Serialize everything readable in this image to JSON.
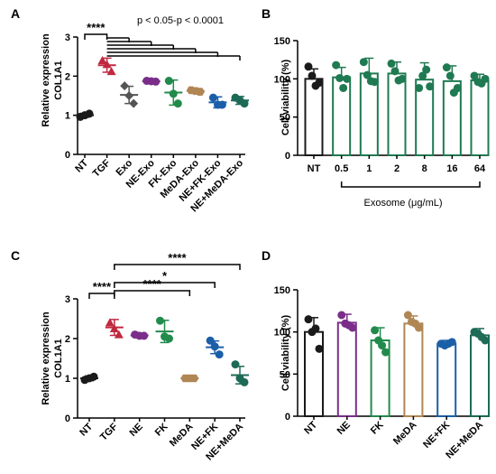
{
  "chart_data": [
    {
      "id": "A",
      "type": "scatter",
      "panel_label": "A",
      "ylabel": [
        "Relative expression",
        "COL1A1"
      ],
      "ylim": [
        0,
        3
      ],
      "yticks": [
        0,
        1,
        2,
        3
      ],
      "categories": [
        "NT",
        "TGF",
        "Exo",
        "NE-Exo",
        "FK-Exo",
        "MeDA-Exo",
        "NE+FK-Exo",
        "NE+MeDA-Exo"
      ],
      "colors": [
        "#1a1a1a",
        "#c0283f",
        "#555555",
        "#7a2e8a",
        "#228b4c",
        "#b08654",
        "#1b5fa8",
        "#1d6b56"
      ],
      "markers": [
        "circle",
        "triangle",
        "diamond",
        "circle",
        "circle",
        "hexagon",
        "circle",
        "circle"
      ],
      "means": [
        1.0,
        2.28,
        1.52,
        1.87,
        1.58,
        1.62,
        1.33,
        1.38
      ],
      "sd": [
        0.05,
        0.18,
        0.22,
        0.04,
        0.32,
        0.05,
        0.14,
        0.1
      ],
      "points": [
        [
          0.96,
          1.0,
          1.04
        ],
        [
          2.4,
          2.3,
          2.12
        ],
        [
          1.75,
          1.5,
          1.3
        ],
        [
          1.88,
          1.87,
          1.86
        ],
        [
          1.88,
          1.55,
          1.3
        ],
        [
          1.64,
          1.62,
          1.6
        ],
        [
          1.45,
          1.27,
          1.27
        ],
        [
          1.45,
          1.38,
          1.3
        ]
      ],
      "annotation": "p < 0.05-p < 0.0001",
      "significance": [
        {
          "from": 0,
          "to": 1,
          "label": "****"
        }
      ]
    },
    {
      "id": "B",
      "type": "bar",
      "panel_label": "B",
      "ylabel": [
        "Cell viability (%)"
      ],
      "ylim": [
        0,
        150
      ],
      "yticks": [
        0,
        50,
        100,
        150
      ],
      "categories": [
        "NT",
        "0.5",
        "1",
        "2",
        "8",
        "16",
        "64"
      ],
      "colors": [
        "#1a1a1a",
        "#1f7a52",
        "#1f7a52",
        "#1f7a52",
        "#1f7a52",
        "#1f7a52",
        "#1f7a52"
      ],
      "values": [
        100,
        102,
        107,
        107,
        99,
        97,
        98
      ],
      "sd": [
        13,
        13,
        20,
        15,
        22,
        20,
        8
      ],
      "points": [
        [
          116,
          104,
          91,
          95
        ],
        [
          118,
          101,
          88,
          100
        ],
        [
          122,
          105,
          97,
          96
        ],
        [
          120,
          110,
          98,
          100
        ],
        [
          88,
          104,
          112,
          90
        ],
        [
          115,
          104,
          82,
          88
        ],
        [
          104,
          96,
          94,
          100
        ]
      ],
      "bracket_label": "Exosome (μg/mL)"
    },
    {
      "id": "C",
      "type": "scatter",
      "panel_label": "C",
      "ylabel": [
        "Relative expression",
        "COL1A1"
      ],
      "ylim": [
        0,
        3
      ],
      "yticks": [
        0,
        1,
        2,
        3
      ],
      "categories": [
        "NT",
        "TGF",
        "NE",
        "FK",
        "MeDA",
        "NE+FK",
        "NE+MeDA"
      ],
      "colors": [
        "#1a1a1a",
        "#c0283f",
        "#7a2e8a",
        "#228b4c",
        "#b08654",
        "#1b5fa8",
        "#1d6b56"
      ],
      "markers": [
        "circle",
        "triangle",
        "circle",
        "circle",
        "hexagon",
        "circle",
        "circle"
      ],
      "means": [
        1.0,
        2.28,
        2.08,
        2.18,
        1.0,
        1.78,
        1.08
      ],
      "sd": [
        0.06,
        0.2,
        0.04,
        0.28,
        0.03,
        0.16,
        0.22
      ],
      "points": [
        [
          0.96,
          1.0,
          1.04
        ],
        [
          2.4,
          2.25,
          2.1
        ],
        [
          2.1,
          2.07,
          2.07
        ],
        [
          2.45,
          2.05,
          2.0
        ],
        [
          1.0,
          1.0,
          1.0
        ],
        [
          1.95,
          1.8,
          1.6
        ],
        [
          1.35,
          1.0,
          0.9
        ]
      ],
      "significance": [
        {
          "from": 0,
          "to": 1,
          "label": "****"
        },
        {
          "from": 1,
          "to": 4,
          "label": "****"
        },
        {
          "from": 1,
          "to": 5,
          "label": "*"
        },
        {
          "from": 1,
          "to": 6,
          "label": "****"
        }
      ]
    },
    {
      "id": "D",
      "type": "bar",
      "panel_label": "D",
      "ylabel": [
        "Cell viability (%)"
      ],
      "ylim": [
        0,
        150
      ],
      "yticks": [
        0,
        50,
        100,
        150
      ],
      "categories": [
        "NT",
        "NE",
        "FK",
        "MeDA",
        "NE+FK",
        "NE+MeDA"
      ],
      "colors": [
        "#1a1a1a",
        "#7a2e8a",
        "#228b4c",
        "#b08654",
        "#1b5fa8",
        "#1d6b56"
      ],
      "values": [
        100,
        111,
        90,
        110,
        86,
        96
      ],
      "sd": [
        17,
        10,
        15,
        9,
        4,
        8
      ],
      "points": [
        [
          115,
          100,
          104,
          80
        ],
        [
          120,
          110,
          108,
          105
        ],
        [
          102,
          90,
          84,
          76
        ],
        [
          120,
          112,
          110,
          105
        ],
        [
          86,
          84,
          86,
          88
        ],
        [
          100,
          98,
          94,
          90
        ]
      ]
    }
  ]
}
